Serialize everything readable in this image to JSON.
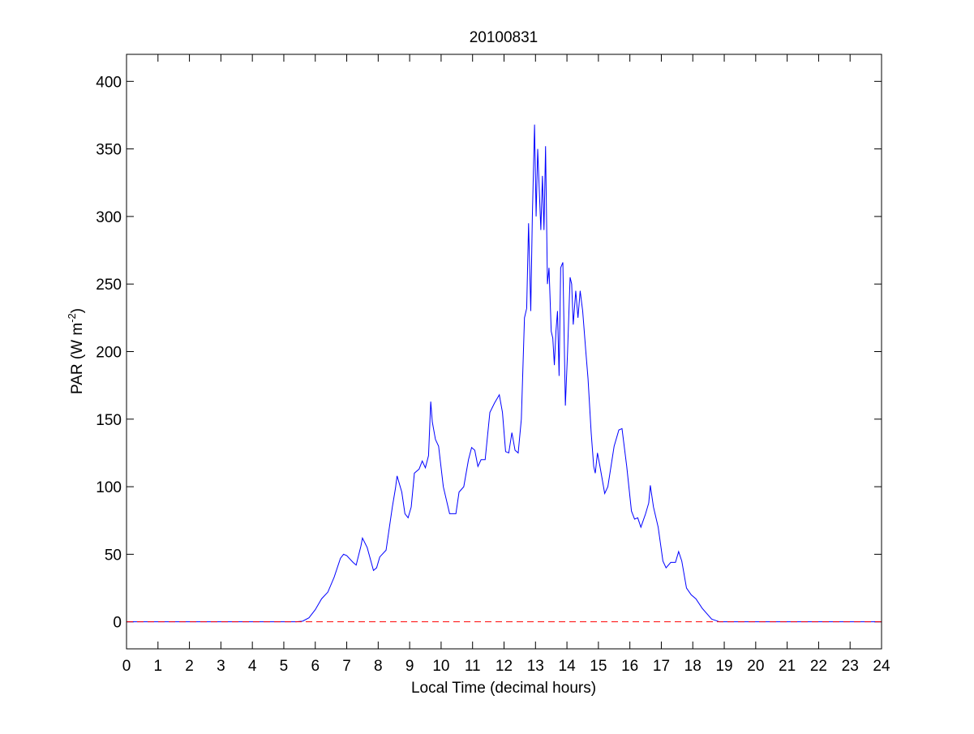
{
  "chart_data": {
    "type": "line",
    "title": "20100831",
    "xlabel": "Local Time (decimal hours)",
    "ylabel_parts": [
      "PAR (W m",
      "-2",
      ")"
    ],
    "xlim": [
      0,
      24
    ],
    "xticks": [
      0,
      1,
      2,
      3,
      4,
      5,
      6,
      7,
      8,
      9,
      10,
      11,
      12,
      13,
      14,
      15,
      16,
      17,
      18,
      19,
      20,
      21,
      22,
      23,
      24
    ],
    "ylim": [
      -20,
      420
    ],
    "yticks": [
      0,
      50,
      100,
      150,
      200,
      250,
      300,
      350,
      400
    ],
    "reference_line": {
      "value": 0,
      "color": "#ff0000"
    },
    "series": [
      {
        "color": "#0000ff",
        "x": [
          0,
          5.4,
          5.6,
          5.8,
          6.0,
          6.2,
          6.4,
          6.6,
          6.8,
          6.9,
          7.0,
          7.2,
          7.3,
          7.45,
          7.5,
          7.65,
          7.85,
          7.95,
          8.05,
          8.25,
          8.45,
          8.55,
          8.6,
          8.75,
          8.85,
          8.95,
          9.05,
          9.15,
          9.3,
          9.4,
          9.5,
          9.6,
          9.67,
          9.72,
          9.82,
          9.92,
          10.07,
          10.27,
          10.47,
          10.57,
          10.72,
          10.87,
          10.97,
          11.07,
          11.17,
          11.27,
          11.4,
          11.55,
          11.7,
          11.85,
          11.95,
          12.05,
          12.15,
          12.25,
          12.35,
          12.45,
          12.55,
          12.65,
          12.72,
          12.78,
          12.85,
          12.9,
          12.97,
          13.02,
          13.07,
          13.12,
          13.17,
          13.22,
          13.27,
          13.32,
          13.38,
          13.43,
          13.5,
          13.55,
          13.6,
          13.65,
          13.7,
          13.75,
          13.8,
          13.87,
          13.95,
          14.02,
          14.1,
          14.15,
          14.2,
          14.28,
          14.35,
          14.42,
          14.5,
          14.6,
          14.67,
          14.77,
          14.85,
          14.9,
          14.97,
          15.05,
          15.2,
          15.3,
          15.5,
          15.65,
          15.75,
          15.9,
          16.05,
          16.15,
          16.25,
          16.35,
          16.5,
          16.6,
          16.65,
          16.75,
          16.9,
          17.05,
          17.15,
          17.3,
          17.45,
          17.55,
          17.65,
          17.8,
          17.95,
          18.1,
          18.3,
          18.6,
          18.85,
          24
        ],
        "values": [
          0,
          0,
          0.5,
          3,
          9,
          17,
          22,
          33,
          47,
          50,
          49,
          44,
          42,
          56,
          62,
          55,
          38,
          40,
          48,
          53,
          85,
          99,
          108,
          96,
          80,
          77,
          85,
          110,
          113,
          119,
          114,
          123,
          163,
          148,
          135,
          130,
          100,
          80,
          80,
          96,
          100,
          120,
          129,
          127,
          115,
          120,
          120,
          155,
          162,
          168,
          155,
          126,
          125,
          140,
          127,
          125,
          150,
          225,
          232,
          295,
          230,
          300,
          368,
          300,
          350,
          320,
          290,
          330,
          290,
          352,
          250,
          262,
          215,
          210,
          190,
          215,
          230,
          182,
          262,
          266,
          160,
          200,
          255,
          250,
          220,
          245,
          225,
          245,
          230,
          200,
          180,
          140,
          115,
          110,
          125,
          115,
          95,
          100,
          130,
          142,
          143,
          115,
          82,
          76,
          77,
          70,
          80,
          88,
          101,
          85,
          70,
          45,
          40,
          44,
          44,
          52,
          45,
          25,
          20,
          17,
          10,
          2,
          0,
          0
        ]
      }
    ]
  }
}
